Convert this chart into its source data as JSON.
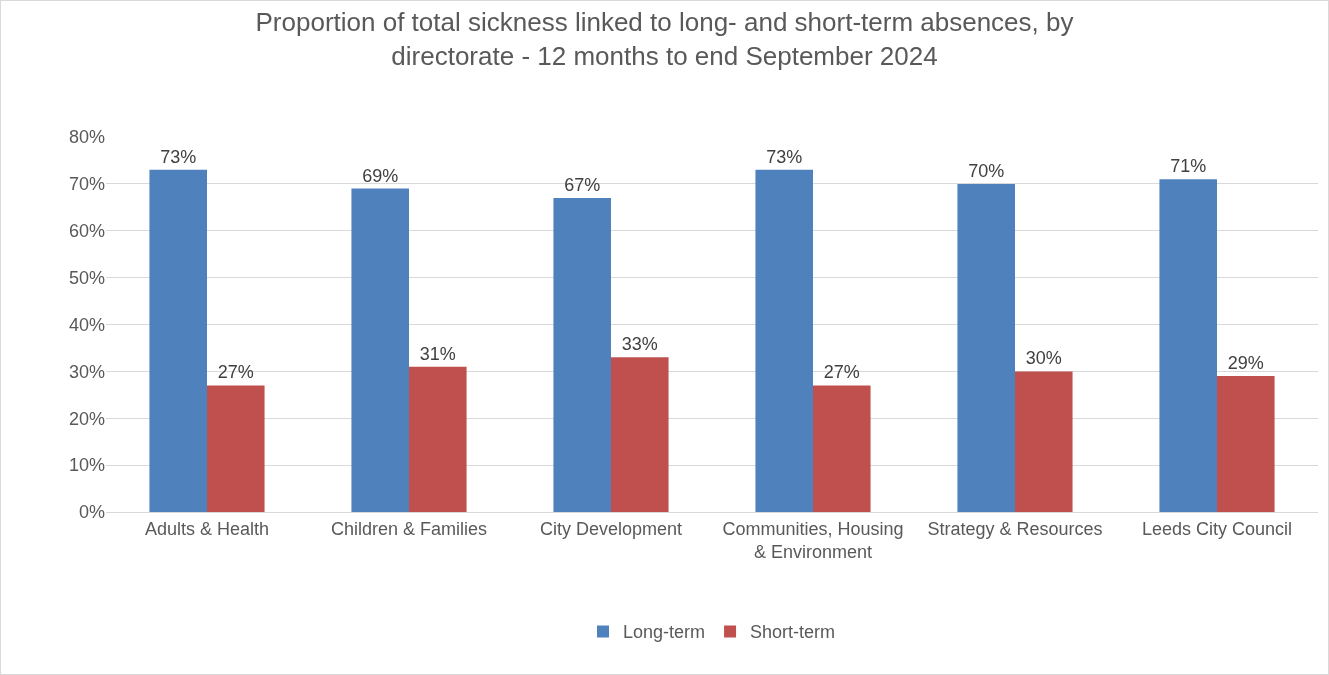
{
  "chart_data": {
    "type": "bar",
    "title": "Proportion of total sickness linked to long- and short-term absences, by directorate - 12 months to end September 2024",
    "categories": [
      "Adults & Health",
      "Children & Families",
      "City Development",
      "Communities, Housing & Environment",
      "Strategy & Resources",
      "Leeds City Council"
    ],
    "series": [
      {
        "name": "Long-term",
        "color": "#4f81bd",
        "values": [
          73,
          69,
          67,
          73,
          70,
          71
        ],
        "value_labels": [
          "73%",
          "69%",
          "67%",
          "73%",
          "70%",
          "71%"
        ]
      },
      {
        "name": "Short-term",
        "color": "#c0504d",
        "values": [
          27,
          31,
          33,
          27,
          30,
          29
        ],
        "value_labels": [
          "27%",
          "31%",
          "33%",
          "27%",
          "30%",
          "29%"
        ]
      }
    ],
    "ylim": [
      0,
      80
    ],
    "yticks": [
      {
        "value": 0,
        "label": "0%"
      },
      {
        "value": 10,
        "label": "10%"
      },
      {
        "value": 20,
        "label": "20%"
      },
      {
        "value": 30,
        "label": "30%"
      },
      {
        "value": 40,
        "label": "40%"
      },
      {
        "value": 50,
        "label": "50%"
      },
      {
        "value": 60,
        "label": "60%"
      },
      {
        "value": 70,
        "label": "70%"
      },
      {
        "value": 80,
        "label": "80%"
      }
    ],
    "grid": "y",
    "legend": "bottom"
  }
}
